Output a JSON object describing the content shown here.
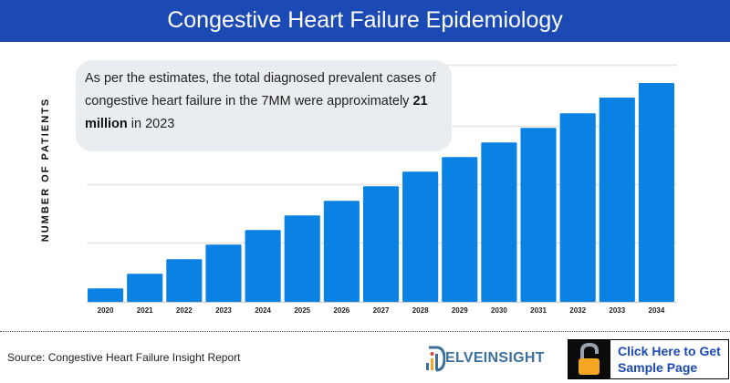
{
  "header": {
    "title": "Congestive Heart Failure Epidemiology"
  },
  "callout": {
    "text_before": "As per the estimates, the total diagnosed prevalent cases of congestive heart failure in the 7MM were approximately ",
    "text_bold": "21 million",
    "text_after": " in 2023"
  },
  "footer": {
    "source": "Source: Congestive Heart Failure Insight Report",
    "logo_text": "ELVEINSIGHT",
    "cta_line1": "Click Here to Get",
    "cta_line2": "Sample Page",
    "cta_icon": "unlocked-padlock-icon"
  },
  "colors": {
    "header": "#1c4ab5",
    "bar": "#0a82e4",
    "callout_bg": "#eaedf0",
    "lock": "#f5a623"
  },
  "chart_data": {
    "type": "bar",
    "ylabel": "NUMBER OF PATIENTS",
    "xlabel": "",
    "categories": [
      "2020",
      "2021",
      "2022",
      "2023",
      "2024",
      "2025",
      "2026",
      "2027",
      "2028",
      "2029",
      "2030",
      "2031",
      "2032",
      "2033",
      "2034"
    ],
    "values": [
      0.23,
      0.48,
      0.73,
      0.98,
      1.23,
      1.48,
      1.73,
      1.98,
      2.23,
      2.48,
      2.73,
      2.98,
      3.23,
      3.5,
      3.75
    ],
    "ylim": [
      0,
      4
    ],
    "y_tick_labels_shown": false,
    "grid": true
  }
}
